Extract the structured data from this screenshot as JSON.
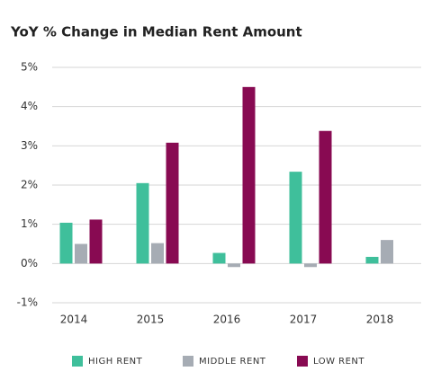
{
  "chart_data": {
    "type": "bar",
    "title": "YoY % Change in Median Rent Amount",
    "categories": [
      "2014",
      "2015",
      "2016",
      "2017",
      "2018"
    ],
    "series": [
      {
        "name": "HIGH RENT",
        "color": "#3fbf9b",
        "values": [
          1.04,
          2.05,
          0.27,
          2.34,
          0.17
        ]
      },
      {
        "name": "MIDDLE RENT",
        "color": "#a6acb4",
        "values": [
          0.5,
          0.52,
          -0.09,
          -0.09,
          0.6
        ]
      },
      {
        "name": "LOW RENT",
        "color": "#880a52",
        "values": [
          1.12,
          3.08,
          4.5,
          3.38,
          null
        ]
      }
    ],
    "ylim": [
      -1,
      5
    ],
    "yticks": [
      {
        "value": -1,
        "label": "-1%"
      },
      {
        "value": 0,
        "label": "0%"
      },
      {
        "value": 1,
        "label": "1%"
      },
      {
        "value": 2,
        "label": "2%"
      },
      {
        "value": 3,
        "label": "3%"
      },
      {
        "value": 4,
        "label": "4%"
      },
      {
        "value": 5,
        "label": "5%"
      }
    ],
    "grid": true,
    "legend": "bottom"
  }
}
